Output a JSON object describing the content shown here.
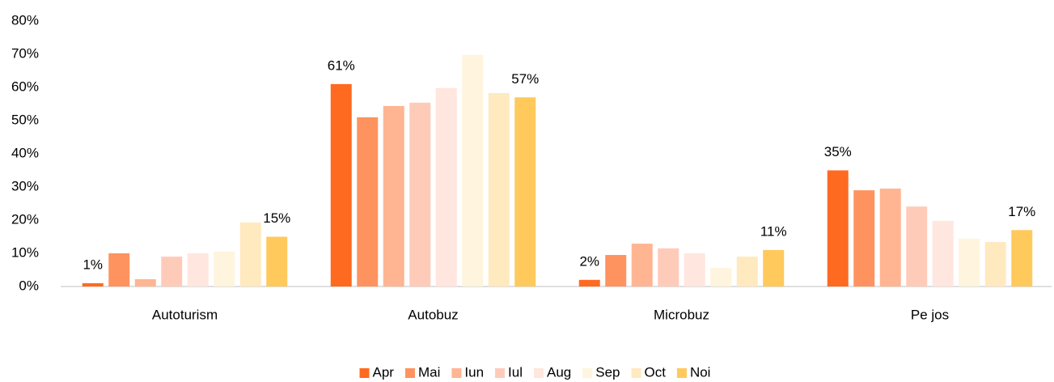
{
  "chart_data": {
    "type": "bar",
    "categories": [
      "Autoturism",
      "Autobuz",
      "Microbuz",
      "Pe jos"
    ],
    "series": [
      {
        "name": "Apr",
        "color": "#ff6a21",
        "values": [
          1,
          61,
          2,
          35
        ],
        "value_labels": [
          "1%",
          "61%",
          "2%",
          "35%"
        ]
      },
      {
        "name": "Mai",
        "color": "#ff935f",
        "values": [
          10,
          51,
          9.5,
          29
        ]
      },
      {
        "name": "Iun",
        "color": "#ffb592",
        "values": [
          2.2,
          54.4,
          12.9,
          29.5
        ]
      },
      {
        "name": "Iul",
        "color": "#ffcbb9",
        "values": [
          9,
          55.4,
          11.5,
          24.1
        ]
      },
      {
        "name": "Aug",
        "color": "#ffe6de",
        "values": [
          10,
          59.8,
          10,
          19.8
        ]
      },
      {
        "name": "Sep",
        "color": "#fff4dd",
        "values": [
          10.5,
          69.8,
          5.6,
          14.4
        ]
      },
      {
        "name": "Oct",
        "color": "#ffe9bf",
        "values": [
          19.3,
          58.3,
          9,
          13.4
        ]
      },
      {
        "name": "Noi",
        "color": "#ffc95c",
        "values": [
          15,
          57,
          11,
          17
        ],
        "value_labels": [
          "15%",
          "57%",
          "11%",
          "17%"
        ]
      }
    ],
    "ylim": [
      0,
      80
    ],
    "yticks": [
      {
        "value": 0,
        "label": "0%"
      },
      {
        "value": 10,
        "label": "10%"
      },
      {
        "value": 20,
        "label": "20%"
      },
      {
        "value": 30,
        "label": "30%"
      },
      {
        "value": 40,
        "label": "40%"
      },
      {
        "value": 50,
        "label": "50%"
      },
      {
        "value": 60,
        "label": "60%"
      },
      {
        "value": 70,
        "label": "70%"
      },
      {
        "value": 80,
        "label": "80%"
      }
    ],
    "grid": false,
    "legend": "bottom"
  }
}
